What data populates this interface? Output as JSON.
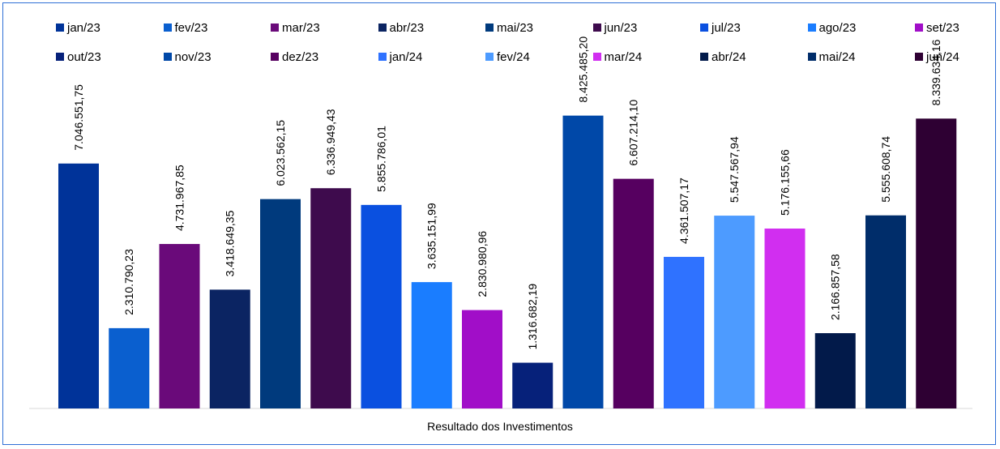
{
  "chart_data": {
    "type": "bar",
    "xlabel": "Resultado dos Investimentos",
    "ylabel": "",
    "ylim": [
      0,
      9000000
    ],
    "grid": false,
    "legend_position": "top",
    "series": [
      {
        "name": "jan/23",
        "value": 7046551.75,
        "label": "7.046.551,75",
        "color": "#003399"
      },
      {
        "name": "fev/23",
        "value": 2310790.23,
        "label": "2.310.790,23",
        "color": "#0a5fcf"
      },
      {
        "name": "mar/23",
        "value": 4731967.85,
        "label": "4.731.967,85",
        "color": "#6a0a7a"
      },
      {
        "name": "abr/23",
        "value": 3418649.35,
        "label": "3.418.649,35",
        "color": "#0b2462"
      },
      {
        "name": "mai/23",
        "value": 6023562.15,
        "label": "6.023.562,15",
        "color": "#003a7d"
      },
      {
        "name": "jun/23",
        "value": 6336949.43,
        "label": "6.336.949,43",
        "color": "#3e0b4d"
      },
      {
        "name": "jul/23",
        "value": 5855786.01,
        "label": "5.855.786,01",
        "color": "#0a50e0"
      },
      {
        "name": "ago/23",
        "value": 3635151.99,
        "label": "3.635.151,99",
        "color": "#1a7dff"
      },
      {
        "name": "set/23",
        "value": 2830980.96,
        "label": "2.830.980,96",
        "color": "#a10ec8"
      },
      {
        "name": "out/23",
        "value": 1316682.19,
        "label": "1.316.682,19",
        "color": "#06217a"
      },
      {
        "name": "nov/23",
        "value": 8425485.2,
        "label": "8.425.485,20",
        "color": "#0048a8"
      },
      {
        "name": "dez/23",
        "value": 6607214.1,
        "label": "6.607.214,10",
        "color": "#560060"
      },
      {
        "name": "jan/24",
        "value": 4361507.17,
        "label": "4.361.507,17",
        "color": "#2f72ff"
      },
      {
        "name": "fev/24",
        "value": 5547567.94,
        "label": "5.547.567,94",
        "color": "#4d9bff"
      },
      {
        "name": "mar/24",
        "value": 5176155.66,
        "label": "5.176.155,66",
        "color": "#d12ef0"
      },
      {
        "name": "abr/24",
        "value": 2166857.58,
        "label": "2.166.857,58",
        "color": "#021a4a"
      },
      {
        "name": "mai/24",
        "value": 5555608.74,
        "label": "5.555.608,74",
        "color": "#002d6a"
      },
      {
        "name": "jun/24",
        "value": 8339634.16,
        "label": "8.339.634,16",
        "color": "#2e0033"
      }
    ]
  }
}
